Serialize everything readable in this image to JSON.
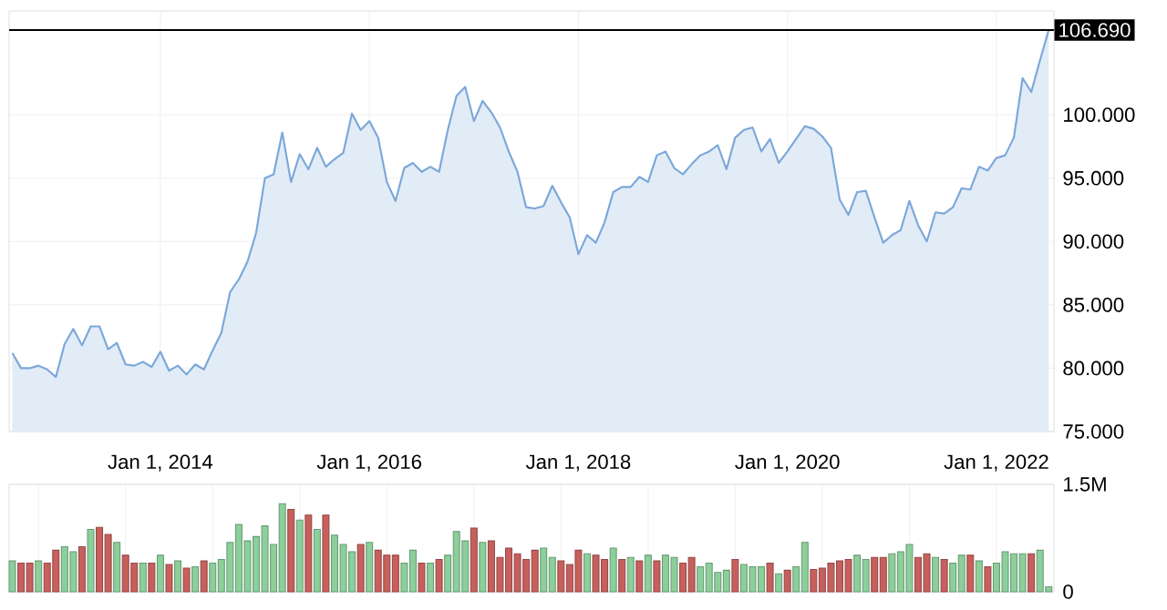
{
  "chart_data": [
    {
      "type": "area",
      "x": [
        "2012-08",
        "2012-09",
        "2012-10",
        "2012-11",
        "2012-12",
        "2013-01",
        "2013-02",
        "2013-03",
        "2013-04",
        "2013-05",
        "2013-06",
        "2013-07",
        "2013-08",
        "2013-09",
        "2013-10",
        "2013-11",
        "2013-12",
        "2014-01",
        "2014-02",
        "2014-03",
        "2014-04",
        "2014-05",
        "2014-06",
        "2014-07",
        "2014-08",
        "2014-09",
        "2014-10",
        "2014-11",
        "2014-12",
        "2015-01",
        "2015-02",
        "2015-03",
        "2015-04",
        "2015-05",
        "2015-06",
        "2015-07",
        "2015-08",
        "2015-09",
        "2015-10",
        "2015-11",
        "2015-12",
        "2016-01",
        "2016-02",
        "2016-03",
        "2016-04",
        "2016-05",
        "2016-06",
        "2016-07",
        "2016-08",
        "2016-09",
        "2016-10",
        "2016-11",
        "2016-12",
        "2017-01",
        "2017-02",
        "2017-03",
        "2017-04",
        "2017-05",
        "2017-06",
        "2017-07",
        "2017-08",
        "2017-09",
        "2017-10",
        "2017-11",
        "2017-12",
        "2018-01",
        "2018-02",
        "2018-03",
        "2018-04",
        "2018-05",
        "2018-06",
        "2018-07",
        "2018-08",
        "2018-09",
        "2018-10",
        "2018-11",
        "2018-12",
        "2019-01",
        "2019-02",
        "2019-03",
        "2019-04",
        "2019-05",
        "2019-06",
        "2019-07",
        "2019-08",
        "2019-09",
        "2019-10",
        "2019-11",
        "2019-12",
        "2020-01",
        "2020-02",
        "2020-03",
        "2020-04",
        "2020-05",
        "2020-06",
        "2020-07",
        "2020-08",
        "2020-09",
        "2020-10",
        "2020-11",
        "2020-12",
        "2021-01",
        "2021-02",
        "2021-03",
        "2021-04",
        "2021-05",
        "2021-06",
        "2021-07",
        "2021-08",
        "2021-09",
        "2021-10",
        "2021-11",
        "2021-12",
        "2022-01",
        "2022-02",
        "2022-03",
        "2022-04",
        "2022-05",
        "2022-06",
        "2022-07"
      ],
      "series": [
        {
          "color": "#7ba7d9",
          "values": [
            81.2,
            80.0,
            80.0,
            80.2,
            79.9,
            79.3,
            81.9,
            83.1,
            81.8,
            83.3,
            83.3,
            81.5,
            82.0,
            80.3,
            80.2,
            80.5,
            80.1,
            81.3,
            79.8,
            80.2,
            79.5,
            80.3,
            79.9,
            81.4,
            82.8,
            86.0,
            87.0,
            88.4,
            90.7,
            95.0,
            95.3,
            98.6,
            94.7,
            96.9,
            95.7,
            97.4,
            95.9,
            96.5,
            97.0,
            100.1,
            98.8,
            99.5,
            98.2,
            94.7,
            93.2,
            95.8,
            96.2,
            95.5,
            95.9,
            95.5,
            98.8,
            101.5,
            102.2,
            99.5,
            101.1,
            100.2,
            99.0,
            97.1,
            95.5,
            92.7,
            92.6,
            92.8,
            94.4,
            93.1,
            91.9,
            89.0,
            90.5,
            89.9,
            91.5,
            93.9,
            94.3,
            94.3,
            95.1,
            94.7,
            96.8,
            97.1,
            95.8,
            95.3,
            96.1,
            96.8,
            97.1,
            97.6,
            95.7,
            98.2,
            98.8,
            99.0,
            97.1,
            98.1,
            96.2,
            97.1,
            98.1,
            99.1,
            98.9,
            98.3,
            97.4,
            93.3,
            92.1,
            93.9,
            94.0,
            91.9,
            89.9,
            90.5,
            90.9,
            93.2,
            91.3,
            90.0,
            92.3,
            92.2,
            92.7,
            94.2,
            94.1,
            95.9,
            95.6,
            96.6,
            96.8,
            98.2,
            102.9,
            101.8,
            104.3,
            106.7
          ]
        }
      ],
      "xlim": [
        "2012-07-20",
        "2022-07-19"
      ],
      "ylim": [
        75,
        108.2
      ],
      "xticks": [
        {
          "value": "2014-01",
          "label": "Jan 1, 2014"
        },
        {
          "value": "2016-01",
          "label": "Jan 1, 2016"
        },
        {
          "value": "2018-01",
          "label": "Jan 1, 2018"
        },
        {
          "value": "2020-01",
          "label": "Jan 1, 2020"
        },
        {
          "value": "2022-01",
          "label": "Jan 1, 2022"
        }
      ],
      "yticks": [
        {
          "value": 75,
          "label": "75.000"
        },
        {
          "value": 80,
          "label": "80.000"
        },
        {
          "value": 85,
          "label": "85.000"
        },
        {
          "value": 90,
          "label": "90.000"
        },
        {
          "value": 95,
          "label": "95.000"
        },
        {
          "value": 100,
          "label": "100.000"
        }
      ],
      "grid": true,
      "ref_lines": [
        {
          "axis": "y",
          "value": 106.69,
          "label": "106.690",
          "color": "#000000"
        }
      ]
    },
    {
      "type": "bar",
      "x": [
        "2012-08",
        "2012-09",
        "2012-10",
        "2012-11",
        "2012-12",
        "2013-01",
        "2013-02",
        "2013-03",
        "2013-04",
        "2013-05",
        "2013-06",
        "2013-07",
        "2013-08",
        "2013-09",
        "2013-10",
        "2013-11",
        "2013-12",
        "2014-01",
        "2014-02",
        "2014-03",
        "2014-04",
        "2014-05",
        "2014-06",
        "2014-07",
        "2014-08",
        "2014-09",
        "2014-10",
        "2014-11",
        "2014-12",
        "2015-01",
        "2015-02",
        "2015-03",
        "2015-04",
        "2015-05",
        "2015-06",
        "2015-07",
        "2015-08",
        "2015-09",
        "2015-10",
        "2015-11",
        "2015-12",
        "2016-01",
        "2016-02",
        "2016-03",
        "2016-04",
        "2016-05",
        "2016-06",
        "2016-07",
        "2016-08",
        "2016-09",
        "2016-10",
        "2016-11",
        "2016-12",
        "2017-01",
        "2017-02",
        "2017-03",
        "2017-04",
        "2017-05",
        "2017-06",
        "2017-07",
        "2017-08",
        "2017-09",
        "2017-10",
        "2017-11",
        "2017-12",
        "2018-01",
        "2018-02",
        "2018-03",
        "2018-04",
        "2018-05",
        "2018-06",
        "2018-07",
        "2018-08",
        "2018-09",
        "2018-10",
        "2018-11",
        "2018-12",
        "2019-01",
        "2019-02",
        "2019-03",
        "2019-04",
        "2019-05",
        "2019-06",
        "2019-07",
        "2019-08",
        "2019-09",
        "2019-10",
        "2019-11",
        "2019-12",
        "2020-01",
        "2020-02",
        "2020-03",
        "2020-04",
        "2020-05",
        "2020-06",
        "2020-07",
        "2020-08",
        "2020-09",
        "2020-10",
        "2020-11",
        "2020-12",
        "2021-01",
        "2021-02",
        "2021-03",
        "2021-04",
        "2021-05",
        "2021-06",
        "2021-07",
        "2021-08",
        "2021-09",
        "2021-10",
        "2021-11",
        "2021-12",
        "2022-01",
        "2022-02",
        "2022-03",
        "2022-04",
        "2022-05",
        "2022-06",
        "2022-07"
      ],
      "values": [
        0.43,
        0.4,
        0.4,
        0.43,
        0.4,
        0.58,
        0.63,
        0.56,
        0.63,
        0.87,
        0.9,
        0.8,
        0.69,
        0.51,
        0.4,
        0.4,
        0.4,
        0.51,
        0.38,
        0.43,
        0.33,
        0.35,
        0.43,
        0.4,
        0.45,
        0.69,
        0.94,
        0.71,
        0.77,
        0.92,
        0.66,
        1.23,
        1.15,
        1.0,
        1.07,
        0.87,
        1.07,
        0.79,
        0.66,
        0.56,
        0.66,
        0.69,
        0.58,
        0.51,
        0.51,
        0.4,
        0.58,
        0.4,
        0.4,
        0.45,
        0.51,
        0.84,
        0.71,
        0.89,
        0.69,
        0.71,
        0.48,
        0.61,
        0.53,
        0.45,
        0.58,
        0.61,
        0.48,
        0.43,
        0.38,
        0.58,
        0.53,
        0.51,
        0.45,
        0.61,
        0.45,
        0.48,
        0.43,
        0.51,
        0.43,
        0.51,
        0.48,
        0.4,
        0.48,
        0.35,
        0.4,
        0.27,
        0.3,
        0.45,
        0.38,
        0.35,
        0.35,
        0.4,
        0.25,
        0.3,
        0.35,
        0.69,
        0.31,
        0.33,
        0.4,
        0.43,
        0.45,
        0.51,
        0.45,
        0.48,
        0.48,
        0.53,
        0.56,
        0.66,
        0.48,
        0.53,
        0.48,
        0.45,
        0.4,
        0.51,
        0.51,
        0.43,
        0.35,
        0.4,
        0.56,
        0.53,
        0.53,
        0.53,
        0.58,
        0.07
      ],
      "colors": [
        "#8ccf9b",
        "#c7605d",
        "#c7605d",
        "#8ccf9b",
        "#c7605d",
        "#c7605d",
        "#8ccf9b",
        "#8ccf9b",
        "#c7605d",
        "#8ccf9b",
        "#c7605d",
        "#c7605d",
        "#8ccf9b",
        "#c7605d",
        "#c7605d",
        "#8ccf9b",
        "#c7605d",
        "#8ccf9b",
        "#c7605d",
        "#8ccf9b",
        "#c7605d",
        "#8ccf9b",
        "#c7605d",
        "#8ccf9b",
        "#8ccf9b",
        "#8ccf9b",
        "#8ccf9b",
        "#8ccf9b",
        "#8ccf9b",
        "#8ccf9b",
        "#8ccf9b",
        "#8ccf9b",
        "#c7605d",
        "#8ccf9b",
        "#c7605d",
        "#8ccf9b",
        "#c7605d",
        "#8ccf9b",
        "#8ccf9b",
        "#8ccf9b",
        "#c7605d",
        "#8ccf9b",
        "#c7605d",
        "#c7605d",
        "#c7605d",
        "#8ccf9b",
        "#8ccf9b",
        "#c7605d",
        "#8ccf9b",
        "#c7605d",
        "#8ccf9b",
        "#8ccf9b",
        "#8ccf9b",
        "#c7605d",
        "#8ccf9b",
        "#c7605d",
        "#c7605d",
        "#c7605d",
        "#c7605d",
        "#c7605d",
        "#c7605d",
        "#8ccf9b",
        "#8ccf9b",
        "#c7605d",
        "#c7605d",
        "#c7605d",
        "#8ccf9b",
        "#c7605d",
        "#c7605d",
        "#8ccf9b",
        "#c7605d",
        "#8ccf9b",
        "#c7605d",
        "#8ccf9b",
        "#c7605d",
        "#8ccf9b",
        "#8ccf9b",
        "#c7605d",
        "#c7605d",
        "#8ccf9b",
        "#8ccf9b",
        "#8ccf9b",
        "#8ccf9b",
        "#c7605d",
        "#8ccf9b",
        "#8ccf9b",
        "#8ccf9b",
        "#c7605d",
        "#8ccf9b",
        "#c7605d",
        "#8ccf9b",
        "#8ccf9b",
        "#c7605d",
        "#c7605d",
        "#c7605d",
        "#c7605d",
        "#c7605d",
        "#8ccf9b",
        "#8ccf9b",
        "#c7605d",
        "#c7605d",
        "#8ccf9b",
        "#8ccf9b",
        "#8ccf9b",
        "#c7605d",
        "#c7605d",
        "#8ccf9b",
        "#c7605d",
        "#8ccf9b",
        "#8ccf9b",
        "#c7605d",
        "#8ccf9b",
        "#c7605d",
        "#8ccf9b",
        "#8ccf9b",
        "#8ccf9b",
        "#8ccf9b",
        "#c7605d",
        "#8ccf9b",
        "#8ccf9b"
      ],
      "xlim": [
        "2012-07-20",
        "2022-07-19"
      ],
      "ylim": [
        0,
        1.5
      ],
      "yticks": [
        0,
        {
          "value": 1.5,
          "label": "1.5M"
        }
      ],
      "grid": true,
      "tick_labels": "y"
    }
  ]
}
